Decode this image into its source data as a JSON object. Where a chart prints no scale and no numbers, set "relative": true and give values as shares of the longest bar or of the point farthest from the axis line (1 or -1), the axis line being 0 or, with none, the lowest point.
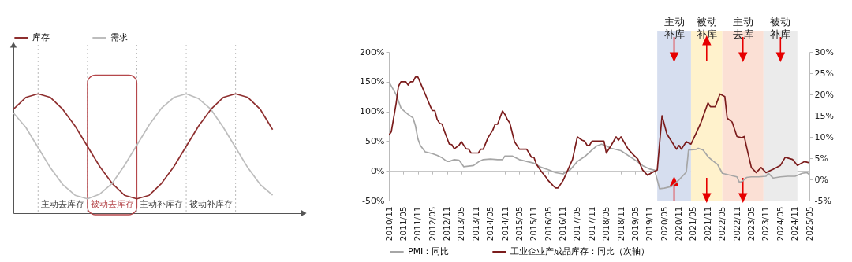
{
  "chart_data": [
    {
      "type": "line",
      "relative": true,
      "legend": "top",
      "grid": "x",
      "categories": [
        null,
        null,
        null,
        null,
        null,
        null,
        null,
        null,
        null,
        null,
        null,
        null,
        null,
        null,
        null,
        null,
        null,
        null,
        null,
        null,
        null,
        null
      ],
      "series": [
        {
          "name": "库存",
          "color": "#8e2f2f",
          "values": [
            0.87,
            0.97,
            1.0,
            0.97,
            0.87,
            0.73,
            0.56,
            0.39,
            0.25,
            0.15,
            0.12,
            0.15,
            0.25,
            0.39,
            0.56,
            0.73,
            0.87,
            0.97,
            1.0,
            0.97,
            0.87,
            0.7
          ]
        },
        {
          "name": "需求",
          "color": "#bdbdbd",
          "values": [
            0.84,
            0.72,
            0.55,
            0.38,
            0.24,
            0.15,
            0.12,
            0.16,
            0.25,
            0.4,
            0.57,
            0.74,
            0.88,
            0.97,
            1.0,
            0.96,
            0.87,
            0.72,
            0.55,
            0.38,
            0.24,
            0.15
          ]
        }
      ],
      "annotations": [
        "主动去库存",
        "被动去库存",
        "主动补库存",
        "被动补库存"
      ]
    },
    {
      "type": "line",
      "legend": "bottom",
      "xlim": [
        "2010-11",
        "2025-05"
      ],
      "xticks": [
        {
          "value": "2010-11",
          "label": "2010/11"
        },
        {
          "value": "2011-05",
          "label": "2011/05"
        },
        {
          "value": "2011-11",
          "label": "2011/11"
        },
        {
          "value": "2012-05",
          "label": "2012/05"
        },
        {
          "value": "2012-11",
          "label": "2012/11"
        },
        {
          "value": "2013-05",
          "label": "2013/05"
        },
        {
          "value": "2013-11",
          "label": "2013/11"
        },
        {
          "value": "2014-05",
          "label": "2014/05"
        },
        {
          "value": "2014-11",
          "label": "2014/11"
        },
        {
          "value": "2015-05",
          "label": "2015/05"
        },
        {
          "value": "2015-11",
          "label": "2015/11"
        },
        {
          "value": "2016-05",
          "label": "2016/05"
        },
        {
          "value": "2016-11",
          "label": "2016/11"
        },
        {
          "value": "2017-05",
          "label": "2017/05"
        },
        {
          "value": "2017-11",
          "label": "2017/11"
        },
        {
          "value": "2018-05",
          "label": "2018/05"
        },
        {
          "value": "2018-11",
          "label": "2018/11"
        },
        {
          "value": "2019-05",
          "label": "2019/05"
        },
        {
          "value": "2019-11",
          "label": "2019/11"
        },
        {
          "value": "2020-05",
          "label": "2020/05"
        },
        {
          "value": "2020-11",
          "label": "2020/11"
        },
        {
          "value": "2021-05",
          "label": "2021/05"
        },
        {
          "value": "2021-11",
          "label": "2021/11"
        },
        {
          "value": "2022-05",
          "label": "2022/05"
        },
        {
          "value": "2022-11",
          "label": "2022/11"
        },
        {
          "value": "2023-05",
          "label": "2023/05"
        },
        {
          "value": "2023-11",
          "label": "2023/11"
        },
        {
          "value": "2024-05",
          "label": "2024/05"
        },
        {
          "value": "2024-11",
          "label": "2024/11"
        },
        {
          "value": "2025-05",
          "label": "2025/05"
        }
      ],
      "ylim": [
        -50,
        200
      ],
      "yticks": [
        {
          "value": -50,
          "label": "-50%"
        },
        {
          "value": 0,
          "label": "0%"
        },
        {
          "value": 50,
          "label": "50%"
        },
        {
          "value": 100,
          "label": "100%"
        },
        {
          "value": 150,
          "label": "150%"
        },
        {
          "value": 200,
          "label": "200%"
        }
      ],
      "y2lim": [
        -5,
        30
      ],
      "y2ticks": [
        {
          "value": -5,
          "label": "-5%"
        },
        {
          "value": 0,
          "label": "0%"
        },
        {
          "value": 5,
          "label": "5%"
        },
        {
          "value": 10,
          "label": "10%"
        },
        {
          "value": 15,
          "label": "15%"
        },
        {
          "value": 20,
          "label": "20%"
        },
        {
          "value": 25,
          "label": "25%"
        },
        {
          "value": 30,
          "label": "30%"
        }
      ],
      "series": [
        {
          "name": "PMI：同比",
          "color": "#a6a6a6",
          "x": [
            "2010-11",
            "2011-02",
            "2011-04",
            "2011-05",
            "2011-07",
            "2011-09",
            "2011-10",
            "2011-11",
            "2011-12",
            "2012-02",
            "2012-04",
            "2012-05",
            "2012-07",
            "2012-09",
            "2012-11",
            "2012-12",
            "2013-02",
            "2013-04",
            "2013-05",
            "2013-06",
            "2013-08",
            "2013-10",
            "2013-12",
            "2014-02",
            "2014-05",
            "2014-08",
            "2014-10",
            "2014-11",
            "2015-02",
            "2015-05",
            "2015-08",
            "2015-11",
            "2016-02",
            "2016-05",
            "2016-08",
            "2016-11",
            "2017-02",
            "2017-05",
            "2017-08",
            "2017-11",
            "2018-01",
            "2018-03",
            "2018-05",
            "2018-07",
            "2018-11",
            "2019-05",
            "2019-08",
            "2019-11",
            "2020-01",
            "2020-03",
            "2020-05",
            "2020-08",
            "2020-11",
            "2021-02",
            "2021-03",
            "2021-06",
            "2021-07",
            "2021-09",
            "2021-11",
            "2022-01",
            "2022-03",
            "2022-05",
            "2022-08",
            "2022-11",
            "2022-12",
            "2023-01",
            "2023-03",
            "2023-05",
            "2023-08",
            "2023-11",
            "2023-12",
            "2024-02",
            "2024-05",
            "2024-08",
            "2024-11",
            "2025-02",
            "2025-04",
            "2025-05"
          ],
          "values": [
            150,
            128,
            106,
            102,
            95,
            89,
            76,
            54,
            43,
            32,
            30,
            29,
            26,
            22,
            16,
            16,
            19,
            18,
            13,
            7,
            8,
            9,
            15,
            19,
            20,
            19,
            19,
            25,
            25,
            19,
            16,
            13,
            6,
            2,
            -3,
            -5,
            2,
            16,
            24,
            35,
            42,
            45,
            42,
            38,
            34,
            18,
            9,
            3,
            1,
            -30,
            -29,
            -26,
            -15,
            -2,
            35,
            36,
            38,
            35,
            24,
            17,
            11,
            -4,
            -7,
            -10,
            -19,
            -18,
            -11,
            -10,
            -10,
            -9,
            -4,
            -12,
            -10,
            -9,
            -9,
            -4,
            -3,
            -6
          ]
        },
        {
          "name": "工业企业产成品库存：同比（次轴）",
          "color": "#7b1c1c",
          "axis": "y2",
          "x": [
            "2010-11",
            "2010-12",
            "2011-02",
            "2011-03",
            "2011-04",
            "2011-06",
            "2011-07",
            "2011-08",
            "2011-09",
            "2011-10",
            "2011-11",
            "2011-12",
            "2012-02",
            "2012-04",
            "2012-05",
            "2012-06",
            "2012-07",
            "2012-08",
            "2012-09",
            "2012-10",
            "2012-12",
            "2013-01",
            "2013-02",
            "2013-04",
            "2013-05",
            "2013-06",
            "2013-07",
            "2013-08",
            "2013-09",
            "2013-12",
            "2014-01",
            "2014-02",
            "2014-04",
            "2014-06",
            "2014-07",
            "2014-08",
            "2014-10",
            "2014-11",
            "2014-12",
            "2015-01",
            "2015-03",
            "2015-05",
            "2015-08",
            "2015-09",
            "2015-10",
            "2015-11",
            "2015-12",
            "2016-02",
            "2016-04",
            "2016-05",
            "2016-06",
            "2016-07",
            "2016-08",
            "2016-09",
            "2016-11",
            "2017-01",
            "2017-03",
            "2017-05",
            "2017-07",
            "2017-08",
            "2017-09",
            "2017-10",
            "2017-11",
            "2018-04",
            "2018-05",
            "2018-07",
            "2018-09",
            "2018-10",
            "2018-11",
            "2019-02",
            "2019-04",
            "2019-06",
            "2019-08",
            "2019-10",
            "2019-12",
            "2020-02",
            "2020-04",
            "2020-06",
            "2020-08",
            "2020-09",
            "2020-10",
            "2020-11",
            "2020-12",
            "2021-02",
            "2021-04",
            "2021-06",
            "2021-08",
            "2021-11",
            "2021-12",
            "2022-02",
            "2022-04",
            "2022-06",
            "2022-07",
            "2022-09",
            "2022-11",
            "2023-01",
            "2023-02",
            "2023-03",
            "2023-05",
            "2023-07",
            "2023-09",
            "2023-11",
            "2024-02",
            "2024-05",
            "2024-07",
            "2024-10",
            "2024-12",
            "2025-03",
            "2025-05"
          ],
          "values": [
            10.4,
            11.2,
            18,
            21.9,
            23,
            23,
            22.2,
            23,
            23,
            24.1,
            24.1,
            22.8,
            20.1,
            17.4,
            16.2,
            16.2,
            14.1,
            13.2,
            13,
            11.3,
            8.3,
            8.2,
            7.2,
            8,
            8.9,
            8,
            7.2,
            7.1,
            6.2,
            6.2,
            7.1,
            7.1,
            9.8,
            11.6,
            13,
            13,
            16.1,
            15.3,
            14.1,
            13.3,
            8.9,
            7.1,
            7.1,
            6.2,
            5.2,
            5.2,
            3.6,
            1.9,
            0.5,
            -0.3,
            -0.9,
            -1.5,
            -2,
            -2,
            -0.3,
            2.2,
            4.7,
            10,
            9.2,
            9,
            8,
            8,
            9,
            9,
            6.2,
            8,
            10,
            9.2,
            10,
            7.1,
            5.9,
            4.8,
            2.2,
            1,
            1.6,
            2.2,
            15,
            10.7,
            8.9,
            8,
            7.1,
            8,
            7.1,
            8.9,
            8.3,
            10.7,
            13.2,
            18,
            17.1,
            17.1,
            20.1,
            19.5,
            14.4,
            13.5,
            10.1,
            9.8,
            10.1,
            7.7,
            2.8,
            1.6,
            2.8,
            1.6,
            2.4,
            3.3,
            5.2,
            4.7,
            3.3,
            4.2,
            3.9
          ]
        }
      ],
      "bands": [
        {
          "axis": "x",
          "from": "2020-02",
          "to": "2021-04",
          "label": "主动补库",
          "color": "#d6deef"
        },
        {
          "axis": "x",
          "from": "2021-04",
          "to": "2022-05",
          "label": "被动补库",
          "color": "#fff2cc"
        },
        {
          "axis": "x",
          "from": "2022-05",
          "to": "2023-10",
          "label": "主动去库",
          "color": "#fbe0d5"
        },
        {
          "axis": "x",
          "from": "2023-10",
          "to": "2024-12",
          "label": "被动补库",
          "color": "#ebebeb"
        }
      ]
    }
  ]
}
